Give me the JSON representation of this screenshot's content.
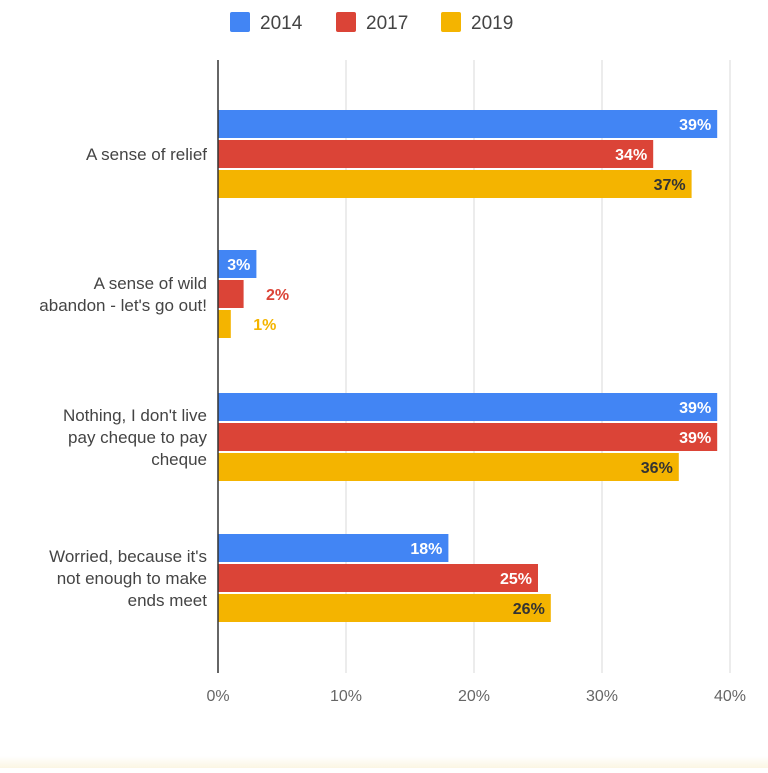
{
  "chart_data": {
    "type": "bar",
    "orientation": "horizontal",
    "categories": [
      [
        "A sense of relief"
      ],
      [
        "A sense of wild",
        "abandon - let's go out!"
      ],
      [
        "Nothing, I don't live",
        "pay cheque to pay",
        "cheque"
      ],
      [
        "Worried, because it's",
        "not enough to make",
        "ends meet"
      ]
    ],
    "series": [
      {
        "name": "2014",
        "color": "#4285F4",
        "values": [
          39,
          3,
          39,
          18
        ],
        "labels": [
          "39%",
          "3%",
          "39%",
          "18%"
        ]
      },
      {
        "name": "2017",
        "color": "#DB4437",
        "values": [
          34,
          2,
          39,
          25
        ],
        "labels": [
          "34%",
          "2%",
          "39%",
          "25%"
        ]
      },
      {
        "name": "2019",
        "color": "#F4B400",
        "values": [
          37,
          1,
          36,
          26
        ],
        "labels": [
          "37%",
          "1%",
          "36%",
          "26%"
        ]
      }
    ],
    "xlim": [
      0,
      40
    ],
    "ticks": [
      {
        "value": 0,
        "label": "0%"
      },
      {
        "value": 10,
        "label": "10%"
      },
      {
        "value": 20,
        "label": "20%"
      },
      {
        "value": 30,
        "label": "30%"
      },
      {
        "value": 40,
        "label": "40%"
      }
    ],
    "grid": true,
    "legend_position": "top"
  }
}
